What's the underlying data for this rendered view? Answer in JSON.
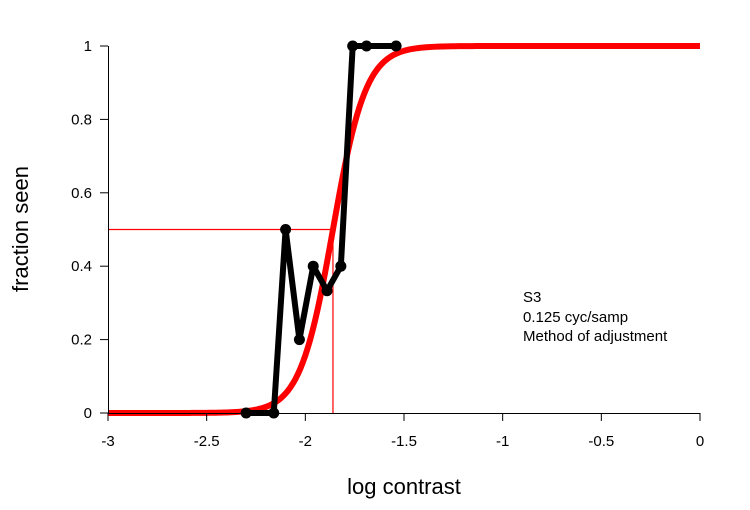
{
  "chart_data": {
    "type": "line",
    "title": "",
    "xlabel": "log contrast",
    "ylabel": "fraction seen",
    "xlim": [
      -3,
      0
    ],
    "ylim": [
      0,
      1
    ],
    "x_ticks": [
      -3,
      -2.5,
      -2,
      -1.5,
      -1,
      -0.5,
      0
    ],
    "x_tick_labels": [
      "-3",
      "-2.5",
      "-2",
      "-1.5",
      "-1",
      "-0.5",
      "0"
    ],
    "y_ticks": [
      0,
      0.2,
      0.4,
      0.6,
      0.8,
      1
    ],
    "y_tick_labels": [
      "0",
      "0.2",
      "0.4",
      "0.6",
      "0.8",
      "1"
    ],
    "grid": false,
    "series": [
      {
        "kind": "data",
        "color": "#000000",
        "x": [
          -2.3,
          -2.16,
          -2.1,
          -2.03,
          -1.96,
          -1.89,
          -1.82,
          -1.76,
          -1.69,
          -1.54
        ],
        "y": [
          0,
          0,
          0.5,
          0.2,
          0.4,
          0.333,
          0.4,
          1,
          1,
          1
        ]
      },
      {
        "kind": "fit",
        "color": "#ff0000",
        "model": "logistic",
        "threshold": -1.86,
        "slope": 12
      }
    ],
    "threshold_marker": {
      "x": -1.86,
      "y": 0.5,
      "color": "#ff0000"
    },
    "annotation": [
      "S3",
      "0.125 cyc/samp",
      "Method of adjustment"
    ]
  }
}
